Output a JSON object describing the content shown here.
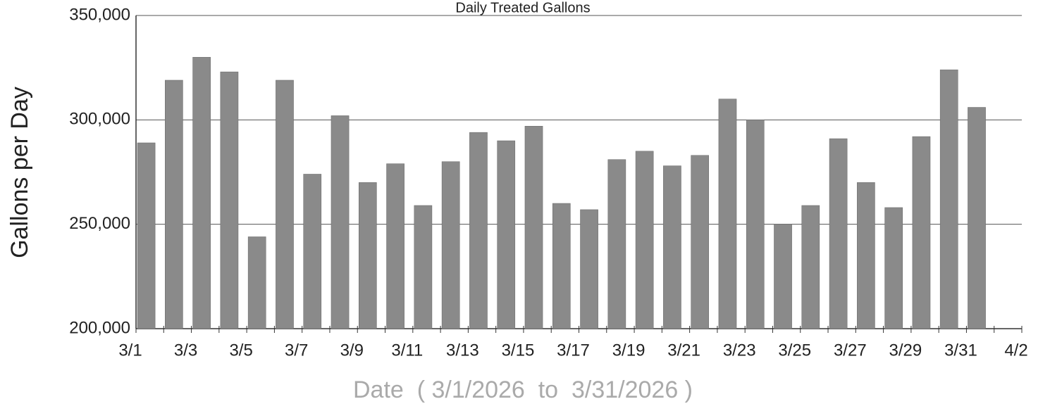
{
  "chart_data": {
    "type": "bar",
    "title": "Daily Treated Gallons",
    "y_label": "Gallons per Day",
    "x_label": "Date  ( 3/1/2026  to  3/31/2026 )",
    "categories": [
      "3/1",
      null,
      "3/3",
      null,
      "3/5",
      null,
      "3/7",
      null,
      "3/9",
      null,
      "3/11",
      null,
      "3/13",
      null,
      "3/15",
      null,
      "3/17",
      null,
      "3/19",
      null,
      "3/21",
      null,
      "3/23",
      null,
      "3/25",
      null,
      "3/27",
      null,
      "3/29",
      null,
      "3/31",
      null,
      "4/2"
    ],
    "values": [
      289000,
      319000,
      330000,
      323000,
      244000,
      319000,
      274000,
      302000,
      270000,
      279000,
      259000,
      280000,
      294000,
      290000,
      297000,
      260000,
      257000,
      281000,
      285000,
      278000,
      283000,
      310000,
      300000,
      250000,
      259000,
      291000,
      270000,
      258000,
      292000,
      324000,
      306000,
      null,
      null
    ],
    "color": "#8a8a8a",
    "ylim": [
      200000,
      350000
    ],
    "yticks": [
      {
        "value": 200000,
        "label": "200,000"
      },
      {
        "value": 250000,
        "label": "250,000"
      },
      {
        "value": 300000,
        "label": "300,000"
      },
      {
        "value": 350000,
        "label": "350,000"
      }
    ],
    "grid": true
  }
}
